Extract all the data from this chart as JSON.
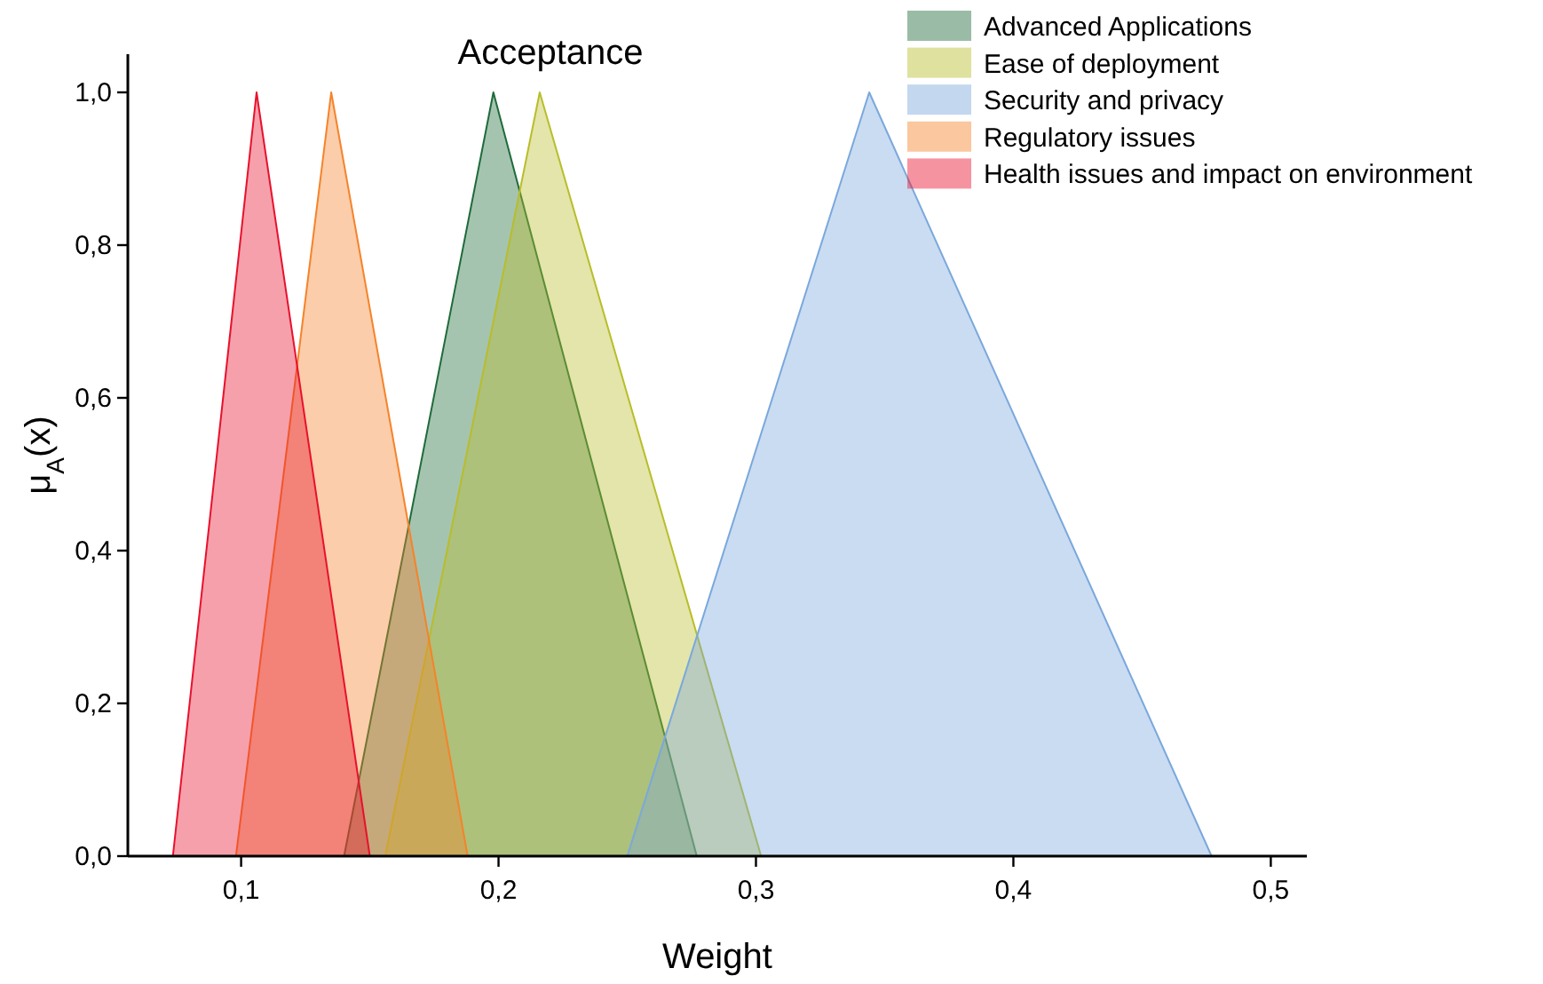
{
  "chart_data": {
    "type": "area",
    "title": "Acceptance",
    "xlabel": "Weight",
    "ylabel": "μ$_{A}$(x)",
    "xlim": [
      0.056,
      0.514
    ],
    "ylim": [
      0,
      1.05
    ],
    "xticks": [
      {
        "value": 0.1,
        "label": "0,1"
      },
      {
        "value": 0.2,
        "label": "0,2"
      },
      {
        "value": 0.3,
        "label": "0,3"
      },
      {
        "value": 0.4,
        "label": "0,4"
      },
      {
        "value": 0.5,
        "label": "0,5"
      }
    ],
    "yticks": [
      {
        "value": 0,
        "label": "0,0"
      },
      {
        "value": 0.2,
        "label": "0,2"
      },
      {
        "value": 0.4,
        "label": "0,4"
      },
      {
        "value": 0.6,
        "label": "0,6"
      },
      {
        "value": 0.8,
        "label": "0,8"
      },
      {
        "value": 1,
        "label": "1,0"
      }
    ],
    "legend": "top right",
    "grid": false,
    "series": [
      {
        "name": "Advanced Applications",
        "color": "#1e6b3a",
        "x": [
          0.14,
          0.198,
          0.277
        ],
        "values": [
          0,
          1,
          0
        ]
      },
      {
        "name": "Ease of deployment",
        "color": "#b8bd2a",
        "x": [
          0.156,
          0.216,
          0.302
        ],
        "values": [
          0,
          1,
          0
        ]
      },
      {
        "name": "Security and privacy",
        "color": "#7aa8dc",
        "x": [
          0.25,
          0.344,
          0.477
        ],
        "values": [
          0,
          1,
          0
        ]
      },
      {
        "name": "Regulatory issues",
        "color": "#f5832a",
        "x": [
          0.098,
          0.135,
          0.188
        ],
        "values": [
          0,
          1,
          0
        ]
      },
      {
        "name": "Health issues and impact on environment",
        "color": "#e8112d",
        "x": [
          0.0735,
          0.106,
          0.15
        ],
        "values": [
          0,
          1,
          0
        ]
      }
    ]
  }
}
